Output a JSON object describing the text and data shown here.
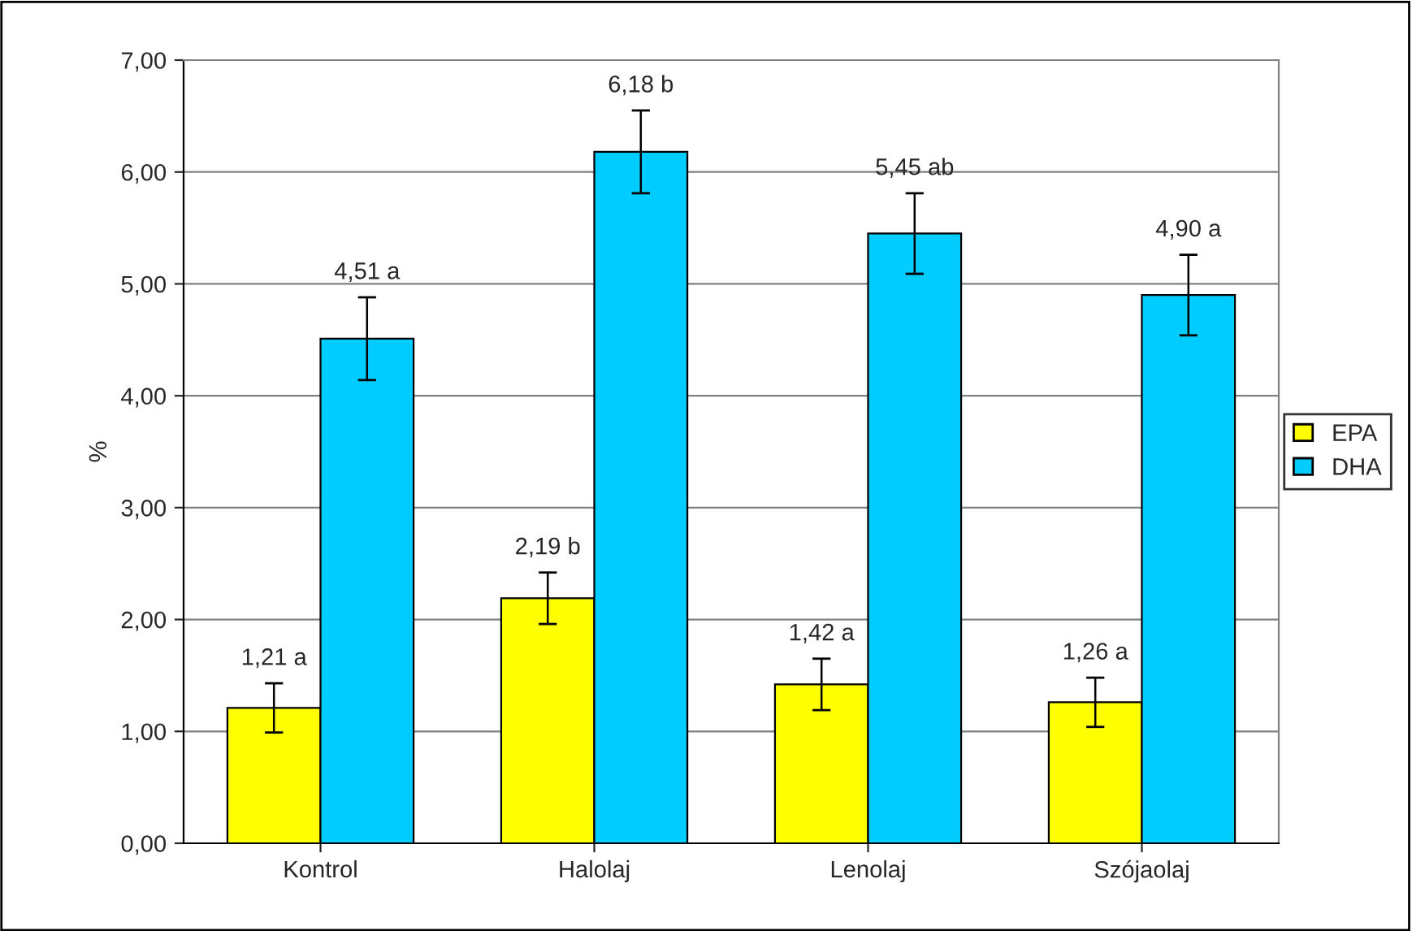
{
  "chart_data": {
    "type": "bar",
    "ylabel": "%",
    "categories": [
      "Kontrol",
      "Halolaj",
      "Lenolaj",
      "Szójaolaj"
    ],
    "series": [
      {
        "name": "EPA",
        "color": "#ffff00",
        "values": [
          1.21,
          2.19,
          1.42,
          1.26
        ],
        "errors": [
          0.22,
          0.23,
          0.23,
          0.22
        ],
        "value_labels": [
          "1,21 a",
          "2,19 b",
          "1,42 a",
          "1,26 a"
        ]
      },
      {
        "name": "DHA",
        "color": "#00ccff",
        "values": [
          4.51,
          6.18,
          5.45,
          4.9
        ],
        "errors": [
          0.37,
          0.37,
          0.36,
          0.36
        ],
        "value_labels": [
          "4,51 a",
          "6,18 b",
          "5,45 ab",
          "4,90 a"
        ]
      }
    ],
    "ylim": [
      0,
      7
    ],
    "yticks": [
      {
        "value": 0,
        "label": "0,00"
      },
      {
        "value": 1,
        "label": "1,00"
      },
      {
        "value": 2,
        "label": "2,00"
      },
      {
        "value": 3,
        "label": "3,00"
      },
      {
        "value": 4,
        "label": "4,00"
      },
      {
        "value": 5,
        "label": "5,00"
      },
      {
        "value": 6,
        "label": "6,00"
      },
      {
        "value": 7,
        "label": "7,00"
      }
    ],
    "grid": "y",
    "legend": "right"
  }
}
